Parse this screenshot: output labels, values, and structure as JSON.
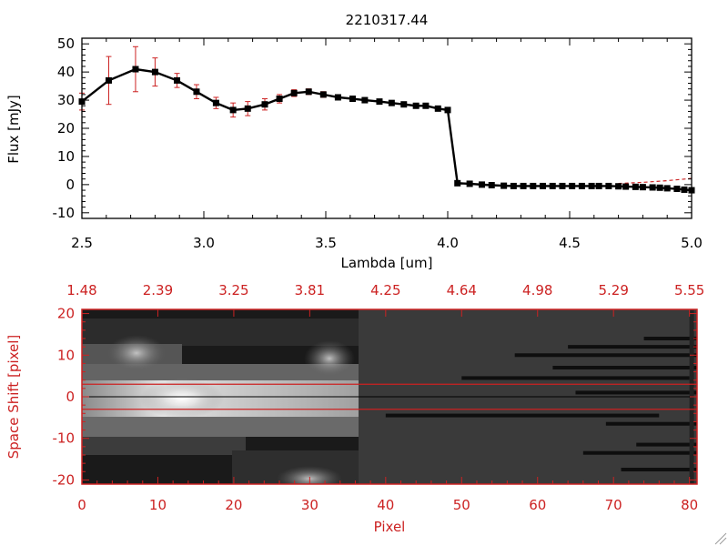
{
  "chart_data": [
    {
      "type": "line",
      "title": "2210317.44",
      "xlabel": "Lambda [um]",
      "ylabel": "Flux [mJy]",
      "xlim": [
        2.5,
        5.0
      ],
      "ylim": [
        -12,
        52
      ],
      "xticks": [
        "2.5",
        "3.0",
        "3.5",
        "4.0",
        "4.5",
        "5.0"
      ],
      "yticks": [
        "-10",
        "0",
        "10",
        "20",
        "30",
        "40",
        "50"
      ],
      "series": [
        {
          "name": "Flux",
          "line_color": "#000000",
          "marker_color": "#000000",
          "points": [
            [
              2.5,
              29.5,
              3.0
            ],
            [
              2.61,
              37.0,
              8.5
            ],
            [
              2.72,
              41.0,
              8.0
            ],
            [
              2.8,
              40.0,
              5.0
            ],
            [
              2.89,
              37.0,
              2.5
            ],
            [
              2.97,
              33.0,
              2.5
            ],
            [
              3.05,
              29.0,
              2.0
            ],
            [
              3.12,
              26.5,
              2.5
            ],
            [
              3.18,
              27.0,
              2.5
            ],
            [
              3.25,
              28.5,
              2.0
            ],
            [
              3.31,
              30.5,
              1.5
            ],
            [
              3.37,
              32.5,
              1.2
            ],
            [
              3.43,
              33.0,
              1.0
            ],
            [
              3.49,
              32.0,
              1.0
            ],
            [
              3.55,
              31.0,
              0.8
            ],
            [
              3.61,
              30.5,
              0.8
            ],
            [
              3.66,
              30.0,
              0.6
            ],
            [
              3.72,
              29.5,
              0.6
            ],
            [
              3.77,
              29.0,
              0.6
            ],
            [
              3.82,
              28.5,
              0.6
            ],
            [
              3.87,
              28.0,
              0.6
            ],
            [
              3.91,
              28.0,
              0.6
            ],
            [
              3.96,
              27.0,
              0.6
            ],
            [
              4.0,
              26.5,
              0.5
            ],
            [
              4.04,
              0.5,
              0.3
            ],
            [
              4.09,
              0.3,
              0.3
            ],
            [
              4.14,
              0.0,
              0.2
            ],
            [
              4.18,
              -0.2,
              0.2
            ],
            [
              4.23,
              -0.4,
              0.2
            ],
            [
              4.27,
              -0.5,
              0.2
            ],
            [
              4.31,
              -0.5,
              0.2
            ],
            [
              4.35,
              -0.5,
              0.2
            ],
            [
              4.39,
              -0.5,
              0.2
            ],
            [
              4.43,
              -0.5,
              0.2
            ],
            [
              4.47,
              -0.5,
              0.2
            ],
            [
              4.51,
              -0.5,
              0.2
            ],
            [
              4.55,
              -0.5,
              0.2
            ],
            [
              4.59,
              -0.5,
              0.2
            ],
            [
              4.62,
              -0.5,
              0.2
            ],
            [
              4.66,
              -0.5,
              0.2
            ],
            [
              4.7,
              -0.6,
              0.2
            ],
            [
              4.73,
              -0.7,
              0.2
            ],
            [
              4.77,
              -0.8,
              0.2
            ],
            [
              4.8,
              -0.9,
              0.2
            ],
            [
              4.84,
              -1.0,
              0.2
            ],
            [
              4.87,
              -1.1,
              0.2
            ],
            [
              4.9,
              -1.3,
              0.2
            ],
            [
              4.94,
              -1.5,
              0.2
            ],
            [
              4.97,
              -1.8,
              0.2
            ],
            [
              5.0,
              -2.0,
              0.2
            ]
          ]
        },
        {
          "name": "upper dashed",
          "line_color": "#cc2222",
          "dashed": true,
          "points": [
            [
              4.7,
              0.4
            ],
            [
              4.8,
              0.8
            ],
            [
              4.9,
              1.4
            ],
            [
              5.0,
              2.2
            ]
          ]
        }
      ],
      "error_bar_color": "#cc2222"
    },
    {
      "type": "heatmap",
      "xlabel": "Pixel",
      "ylabel": "Space Shift [pixel]",
      "xlim": [
        0,
        81
      ],
      "ylim": [
        -21,
        21
      ],
      "xticks": [
        "0",
        "10",
        "20",
        "30",
        "40",
        "50",
        "60",
        "70",
        "80"
      ],
      "yticks": [
        "-20",
        "-10",
        "0",
        "10",
        "20"
      ],
      "top_xticks": [
        "1.48",
        "2.39",
        "3.25",
        "3.81",
        "4.25",
        "4.64",
        "4.98",
        "5.29",
        "5.55"
      ],
      "axis_color": "#cc2222",
      "aperture_y": [
        -3,
        3
      ],
      "center_y": 0,
      "spectrum_edge_pixel": 36,
      "dark_rows": [
        {
          "y": 14.0,
          "x0": 74,
          "x1": 81
        },
        {
          "y": 12.0,
          "x0": 64,
          "x1": 81
        },
        {
          "y": 10.0,
          "x0": 57,
          "x1": 81
        },
        {
          "y": 7.0,
          "x0": 62,
          "x1": 81
        },
        {
          "y": 4.5,
          "x0": 50,
          "x1": 80
        },
        {
          "y": 1.0,
          "x0": 65,
          "x1": 81
        },
        {
          "y": -4.5,
          "x0": 40,
          "x1": 76
        },
        {
          "y": -6.5,
          "x0": 69,
          "x1": 81
        },
        {
          "y": -11.5,
          "x0": 73,
          "x1": 81
        },
        {
          "y": -13.5,
          "x0": 66,
          "x1": 81
        },
        {
          "y": -17.5,
          "x0": 71,
          "x1": 81
        }
      ]
    }
  ]
}
